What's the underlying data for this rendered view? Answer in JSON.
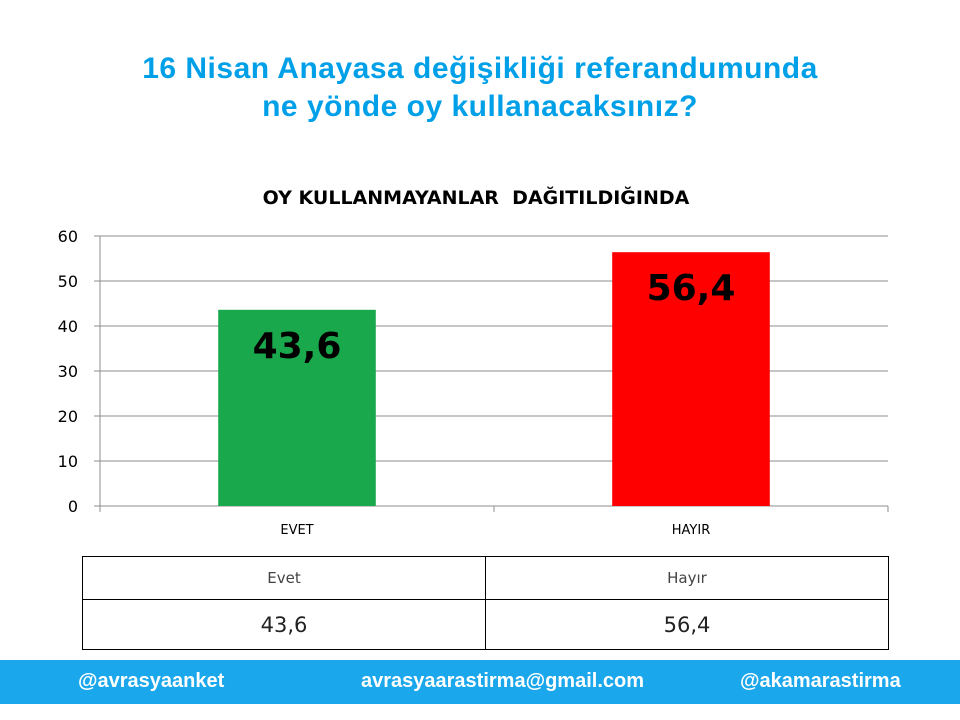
{
  "headline": {
    "line1": "16 Nisan Anayasa değişikliği referandumunda",
    "line2": "ne yönde oy kullanacaksınız?"
  },
  "chart_data": {
    "type": "bar",
    "title": "OY KULLANMAYANLAR  DAĞITILDIĞINDA",
    "categories": [
      "EVET",
      "HAYIR"
    ],
    "values": [
      43.6,
      56.4
    ],
    "value_labels": [
      "43,6",
      "56,4"
    ],
    "colors": [
      "#1aa84d",
      "#ff0000"
    ],
    "ylim": [
      0,
      60
    ],
    "yticks": [
      0,
      10,
      20,
      30,
      40,
      50,
      60
    ],
    "grid": true,
    "xlabel": "",
    "ylabel": ""
  },
  "table": {
    "headers": [
      "Evet",
      "Hayır"
    ],
    "values": [
      "43,6",
      "56,4"
    ]
  },
  "footer": {
    "left": "@avrasyaanket",
    "center": "avrasyaarastirma@gmail.com",
    "right": "@akamarastirma"
  }
}
